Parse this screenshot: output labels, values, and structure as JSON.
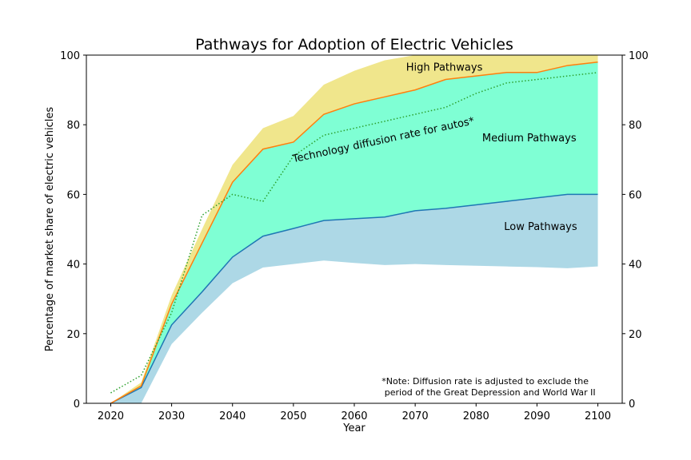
{
  "chart_data": {
    "type": "area",
    "title": "Pathways for Adoption of Electric Vehicles",
    "xlabel": "Year",
    "ylabel": "Percentage of market share of electric vehicles",
    "xlim": [
      2016,
      2104
    ],
    "ylim": [
      0,
      100
    ],
    "xticks": [
      2020,
      2030,
      2040,
      2050,
      2060,
      2070,
      2080,
      2090,
      2100
    ],
    "yticks": [
      0,
      20,
      40,
      60,
      80,
      100
    ],
    "right_axis": true,
    "grid": false,
    "x": [
      2020,
      2025,
      2030,
      2035,
      2040,
      2045,
      2050,
      2055,
      2060,
      2065,
      2070,
      2075,
      2080,
      2085,
      2090,
      2095,
      2100
    ],
    "bands": [
      {
        "name": "Low Pathways",
        "color": "#add8e6",
        "lower": [
          0,
          0,
          17,
          26,
          34.5,
          39,
          40,
          41,
          40.3,
          39.7,
          40,
          39.7,
          39.5,
          39.3,
          39.1,
          38.8,
          39.3
        ],
        "upper": [
          0,
          4.5,
          22.5,
          32,
          42,
          48,
          50.2,
          52.5,
          53,
          53.5,
          55.3,
          56,
          57,
          58,
          59,
          60,
          60
        ]
      },
      {
        "name": "Medium Pathways",
        "color": "#7fffd4",
        "lower": [
          0,
          4.5,
          22.5,
          32,
          42,
          48,
          50.2,
          52.5,
          53,
          53.5,
          55.3,
          56,
          57,
          58,
          59,
          60,
          60
        ],
        "upper": [
          0,
          5,
          28.5,
          46,
          63.5,
          73,
          75,
          83,
          86,
          88,
          90,
          93,
          94,
          95,
          95,
          97,
          98
        ]
      },
      {
        "name": "High Pathways",
        "color": "#f0e68c",
        "lower": [
          0,
          5,
          28.5,
          46,
          63.5,
          73,
          75,
          83,
          86,
          88,
          90,
          93,
          94,
          95,
          95,
          97,
          98
        ],
        "upper": [
          0,
          6,
          31,
          50,
          68.5,
          79,
          82.5,
          91.5,
          95.5,
          98.5,
          100,
          100,
          100,
          100,
          100,
          100,
          100
        ]
      }
    ],
    "lines": [
      {
        "name": "low-medium-boundary",
        "color": "#1f77b4",
        "style": "solid",
        "x": [
          2020,
          2025,
          2030,
          2035,
          2040,
          2045,
          2050,
          2055,
          2060,
          2065,
          2070,
          2075,
          2080,
          2085,
          2090,
          2095,
          2100
        ],
        "y": [
          0,
          4.5,
          22.5,
          32,
          42,
          48,
          50.2,
          52.5,
          53,
          53.5,
          55.3,
          56,
          57,
          58,
          59,
          60,
          60
        ]
      },
      {
        "name": "medium-high-boundary",
        "color": "#ff7f0e",
        "style": "solid",
        "x": [
          2020,
          2025,
          2030,
          2035,
          2040,
          2045,
          2050,
          2055,
          2060,
          2065,
          2070,
          2075,
          2080,
          2085,
          2090,
          2095,
          2100
        ],
        "y": [
          0,
          5,
          28.5,
          46,
          63.5,
          73,
          75,
          83,
          86,
          88,
          90,
          93,
          94,
          95,
          95,
          97,
          98
        ]
      },
      {
        "name": "technology-diffusion-autos",
        "color": "#2ca02c",
        "style": "dotted",
        "x": [
          2020,
          2025,
          2030,
          2035,
          2040,
          2045,
          2050,
          2055,
          2060,
          2065,
          2070,
          2075,
          2080,
          2085,
          2090,
          2095,
          2100
        ],
        "y": [
          3,
          8,
          26,
          54,
          60,
          58,
          71,
          77,
          79,
          81,
          83,
          85,
          89,
          92,
          93,
          94,
          95
        ]
      }
    ],
    "annotations": [
      {
        "text": "High Pathways",
        "x": 2068.5,
        "y": 95.5,
        "rotate": 0
      },
      {
        "text": "Medium Pathways",
        "x": 2081,
        "y": 75.2,
        "rotate": 0
      },
      {
        "text": "Low Pathways",
        "x": 2084.6,
        "y": 49.8,
        "rotate": 0
      },
      {
        "text": "Technology diffusion rate for autos*",
        "x": 2050,
        "y": 69.2,
        "rotate": -12
      }
    ],
    "note": {
      "lines": [
        "*Note: Diffusion rate is adjusted to exclude the",
        " period of the Great Depression and World War II"
      ],
      "x": 2064.5,
      "y": 5.5
    }
  }
}
